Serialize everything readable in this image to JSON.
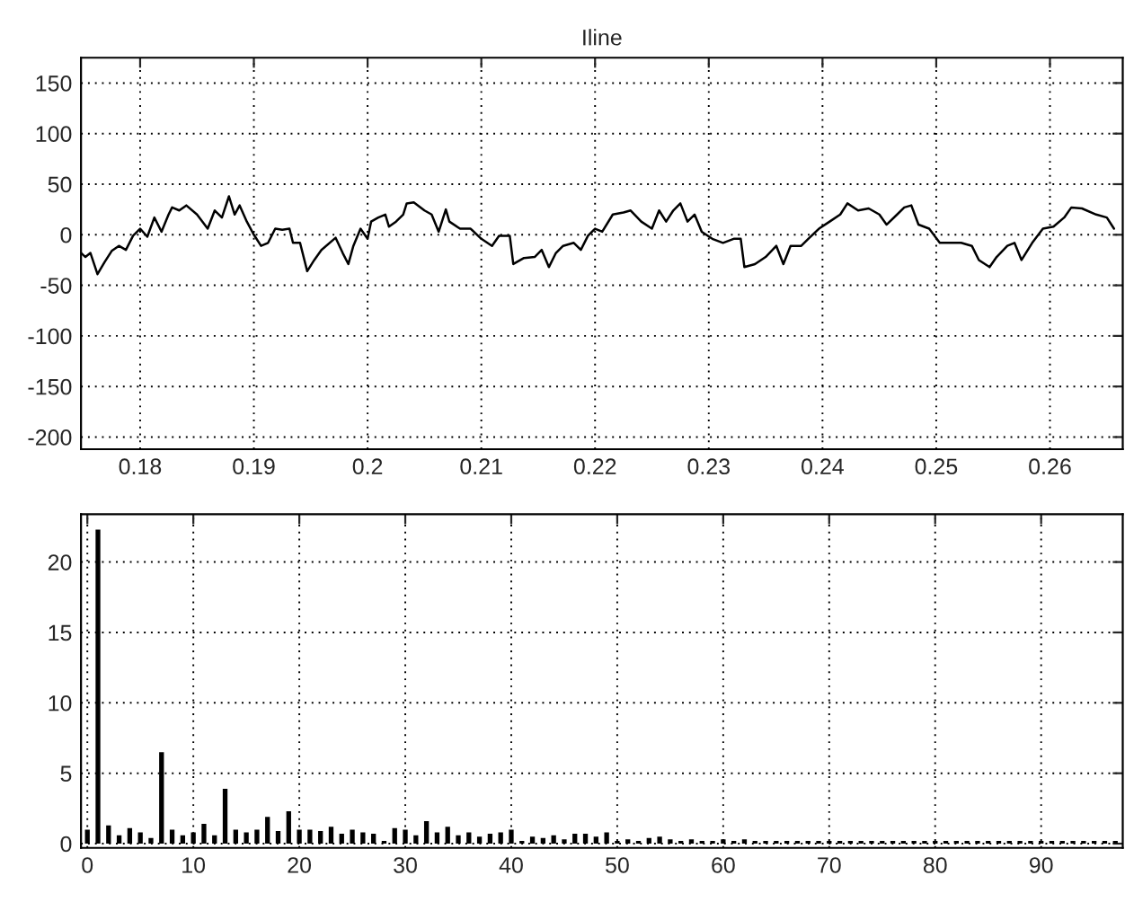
{
  "chart_data": [
    {
      "type": "line",
      "title": "Iline",
      "xlim": [
        0.1748,
        0.2664
      ],
      "ylim": [
        -212,
        175
      ],
      "xticks": [
        0.18,
        0.19,
        0.2,
        0.21,
        0.22,
        0.23,
        0.24,
        0.25,
        0.26
      ],
      "yticks": [
        -200,
        -150,
        -100,
        -50,
        0,
        50,
        100,
        150
      ],
      "grid": true,
      "series": [
        {
          "color": "#000000",
          "x": [
            0.17481,
            0.17519,
            0.17563,
            0.17625,
            0.17688,
            0.1775,
            0.17813,
            0.17875,
            0.17938,
            0.18,
            0.18063,
            0.18125,
            0.18188,
            0.1825,
            0.18281,
            0.18344,
            0.18406,
            0.185,
            0.18594,
            0.18656,
            0.18719,
            0.18781,
            0.18831,
            0.18875,
            0.18938,
            0.19,
            0.19063,
            0.19125,
            0.19188,
            0.1925,
            0.19313,
            0.19344,
            0.19406,
            0.19469,
            0.19531,
            0.19594,
            0.19719,
            0.19781,
            0.19831,
            0.19875,
            0.19938,
            0.2,
            0.20031,
            0.20094,
            0.20156,
            0.20188,
            0.2025,
            0.20313,
            0.20344,
            0.20406,
            0.205,
            0.20563,
            0.20625,
            0.20688,
            0.20719,
            0.20813,
            0.20906,
            0.21,
            0.21094,
            0.21156,
            0.2125,
            0.21281,
            0.21375,
            0.21469,
            0.21531,
            0.21594,
            0.21656,
            0.21719,
            0.21813,
            0.21875,
            0.21938,
            0.22,
            0.22063,
            0.22156,
            0.2225,
            0.22313,
            0.22406,
            0.225,
            0.22563,
            0.22625,
            0.22688,
            0.2275,
            0.22813,
            0.22875,
            0.22938,
            0.23031,
            0.23125,
            0.23219,
            0.23281,
            0.23313,
            0.23406,
            0.235,
            0.23594,
            0.23656,
            0.23719,
            0.23813,
            0.23875,
            0.23969,
            0.24063,
            0.24156,
            0.24219,
            0.24313,
            0.24406,
            0.245,
            0.24563,
            0.24656,
            0.24719,
            0.24781,
            0.24844,
            0.24938,
            0.25031,
            0.25125,
            0.25219,
            0.25313,
            0.25375,
            0.25469,
            0.25531,
            0.25625,
            0.25688,
            0.2575,
            0.25844,
            0.25938,
            0.26031,
            0.26125,
            0.26188,
            0.26281,
            0.26406,
            0.265,
            0.26563
          ],
          "values": [
            -18,
            -22,
            -18,
            -39,
            -27,
            -16,
            -11,
            -15,
            -1,
            6,
            -2,
            17,
            3,
            20,
            27,
            24,
            29,
            20,
            6,
            24,
            17,
            38,
            20,
            29,
            13,
            0,
            -11,
            -8,
            6,
            5,
            6,
            -8,
            -8,
            -36,
            -25,
            -15,
            -3,
            -18,
            -29,
            -11,
            6,
            -4,
            13,
            17,
            20,
            8,
            13,
            20,
            31,
            32,
            24,
            20,
            3,
            25,
            13,
            6,
            6,
            -4,
            -11,
            -1,
            -1,
            -29,
            -23,
            -22,
            -15,
            -32,
            -18,
            -11,
            -8,
            -15,
            -1,
            6,
            3,
            20,
            22,
            24,
            13,
            6,
            24,
            13,
            24,
            31,
            13,
            20,
            3,
            -4,
            -8,
            -4,
            -4,
            -32,
            -29,
            -22,
            -11,
            -29,
            -11,
            -11,
            -4,
            6,
            13,
            20,
            31,
            24,
            26,
            20,
            10,
            20,
            27,
            29,
            10,
            6,
            -8,
            -8,
            -8,
            -11,
            -25,
            -32,
            -22,
            -11,
            -8,
            -25,
            -8,
            6,
            8,
            17,
            27,
            26,
            20,
            17,
            6
          ]
        }
      ]
    },
    {
      "type": "bar",
      "xlim": [
        -0.6,
        97.7
      ],
      "ylim": [
        -0.3,
        23.4
      ],
      "xticks": [
        0,
        10,
        20,
        30,
        40,
        50,
        60,
        70,
        80,
        90
      ],
      "yticks": [
        0,
        5,
        10,
        15,
        20
      ],
      "grid": true,
      "x": [
        0,
        1,
        2,
        3,
        4,
        5,
        6,
        7,
        8,
        9,
        10,
        11,
        12,
        13,
        14,
        15,
        16,
        17,
        18,
        19,
        20,
        21,
        22,
        23,
        24,
        25,
        26,
        27,
        28,
        29,
        30,
        31,
        32,
        33,
        34,
        35,
        36,
        37,
        38,
        39,
        40,
        41,
        42,
        43,
        44,
        45,
        46,
        47,
        48,
        49,
        50,
        51,
        52,
        53,
        54,
        55,
        56,
        57,
        58,
        59,
        60,
        61,
        62,
        63,
        64,
        65,
        66,
        67,
        68,
        69,
        70,
        71,
        72,
        73,
        74,
        75,
        76,
        77,
        78,
        79,
        80,
        81,
        82,
        83,
        84,
        85,
        86,
        87,
        88,
        89,
        90,
        91,
        92,
        93,
        94,
        95,
        96,
        97
      ],
      "series": [
        {
          "color": "#000000",
          "values": [
            1.0,
            22.3,
            1.3,
            0.6,
            1.1,
            0.8,
            0.4,
            6.5,
            1.0,
            0.6,
            0.8,
            1.4,
            0.6,
            3.9,
            1.0,
            0.8,
            1.0,
            1.9,
            0.9,
            2.3,
            1.0,
            1.0,
            0.9,
            1.2,
            0.7,
            1.0,
            0.8,
            0.7,
            0.2,
            1.1,
            1.0,
            0.6,
            1.6,
            0.8,
            1.2,
            0.6,
            0.8,
            0.5,
            0.7,
            0.8,
            1.0,
            0.2,
            0.5,
            0.4,
            0.6,
            0.3,
            0.7,
            0.7,
            0.5,
            0.8,
            0.2,
            0.3,
            0.2,
            0.4,
            0.5,
            0.3,
            0.2,
            0.3,
            0.2,
            0.2,
            0.3,
            0.2,
            0.3,
            0.2,
            0.2,
            0.2,
            0.2,
            0.2,
            0.2,
            0.2,
            0.2,
            0.2,
            0.2,
            0.2,
            0.2,
            0.2,
            0.2,
            0.2,
            0.2,
            0.2,
            0.2,
            0.2,
            0.2,
            0.2,
            0.2,
            0.2,
            0.2,
            0.2,
            0.2,
            0.2,
            0.2,
            0.2,
            0.2,
            0.2,
            0.2,
            0.2,
            0.2,
            0.2
          ]
        }
      ]
    }
  ]
}
